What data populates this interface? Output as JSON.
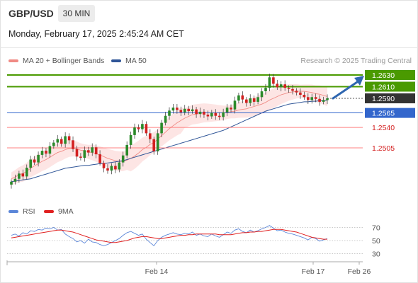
{
  "header": {
    "symbol": "GBP/USD",
    "timeframe": "30 MIN",
    "datetime": "Monday, February 17, 2025 2:45:24 AM CET",
    "credit": "Research © 2025 Trading Central"
  },
  "legend": {
    "bollinger": "MA 20 + Bollinger Bands",
    "ma50": "MA 50",
    "rsi": "RSI",
    "rsi_ma": "9MA"
  },
  "colors": {
    "bollinger": "#f08a84",
    "band_fill": "#fde1df",
    "ma50": "#2f5597",
    "rsi": "#5b86d8",
    "rsi_ma": "#e02020",
    "up": "#2a8a2a",
    "down": "#d32020",
    "target": "#4a9a00",
    "pivot": "#3366cc",
    "support": "#ff8080",
    "current_bg": "#333333",
    "arrow": "#2e66b0"
  },
  "chart_data": {
    "type": "line",
    "instrument": "GBP/USD",
    "timeframe": "30 MIN",
    "x_tick_labels": [
      "Feb 14",
      "Feb 17",
      "Feb 26"
    ],
    "rsi_tick_labels": [
      "70",
      "50",
      "30"
    ],
    "price_levels": [
      {
        "value": 1.263,
        "label": "1.2630",
        "kind": "target"
      },
      {
        "value": 1.261,
        "label": "1.2610",
        "kind": "target"
      },
      {
        "value": 1.259,
        "label": "1.2590",
        "kind": "current"
      },
      {
        "value": 1.2565,
        "label": "1.2565",
        "kind": "pivot"
      },
      {
        "value": 1.254,
        "label": "1.2540",
        "kind": "support"
      },
      {
        "value": 1.2505,
        "label": "1.2505",
        "kind": "support"
      }
    ],
    "close": [
      1.2447,
      1.2452,
      1.2461,
      1.2456,
      1.2471,
      1.2485,
      1.248,
      1.2493,
      1.25,
      1.2495,
      1.2508,
      1.2514,
      1.252,
      1.2512,
      1.2525,
      1.2518,
      1.2503,
      1.249,
      1.2488,
      1.2501,
      1.2497,
      1.2506,
      1.2494,
      1.2479,
      1.247,
      1.2466,
      1.2474,
      1.2468,
      1.248,
      1.2492,
      1.251,
      1.2527,
      1.254,
      1.2537,
      1.2546,
      1.253,
      1.252,
      1.2499,
      1.253,
      1.2548,
      1.256,
      1.2569,
      1.2574,
      1.257,
      1.2566,
      1.2572,
      1.2568,
      1.2571,
      1.2563,
      1.2567,
      1.2562,
      1.2559,
      1.2565,
      1.256,
      1.2558,
      1.2566,
      1.2574,
      1.2571,
      1.2586,
      1.2595,
      1.2588,
      1.2582,
      1.259,
      1.2584,
      1.2592,
      1.2602,
      1.2608,
      1.2626,
      1.2615,
      1.2609,
      1.2614,
      1.2608,
      1.2606,
      1.2603,
      1.26,
      1.2596,
      1.2592,
      1.2587,
      1.2592,
      1.2589,
      1.2584,
      1.2587,
      1.259
    ],
    "ma20": [
      1.2452,
      1.2455,
      1.2459,
      1.2461,
      1.2465,
      1.247,
      1.2474,
      1.2478,
      1.2482,
      1.2485,
      1.2489,
      1.2493,
      1.2497,
      1.2499,
      1.2502,
      1.2504,
      1.2504,
      1.2503,
      1.2501,
      1.25,
      1.2498,
      1.2497,
      1.2495,
      1.2493,
      1.249,
      1.2487,
      1.2485,
      1.2483,
      1.2482,
      1.2482,
      1.2484,
      1.2487,
      1.2491,
      1.2496,
      1.2502,
      1.2506,
      1.2511,
      1.2514,
      1.252,
      1.2526,
      1.2532,
      1.2538,
      1.2543,
      1.2548,
      1.2552,
      1.2556,
      1.2559,
      1.2562,
      1.2563,
      1.2564,
      1.2565,
      1.2565,
      1.2565,
      1.2565,
      1.2565,
      1.2565,
      1.2566,
      1.2567,
      1.2568,
      1.257,
      1.2571,
      1.2572,
      1.2574,
      1.2576,
      1.2578,
      1.258,
      1.2583,
      1.2587,
      1.259,
      1.2593,
      1.2596,
      1.2598,
      1.26,
      1.2601,
      1.2602,
      1.2602,
      1.2602,
      1.2601,
      1.26,
      1.2598,
      1.2597,
      1.2595,
      1.2593
    ],
    "ma50": [
      1.2447,
      1.2448,
      1.2449,
      1.245,
      1.2451,
      1.2452,
      1.2454,
      1.2456,
      1.2458,
      1.246,
      1.2462,
      1.2464,
      1.2466,
      1.2468,
      1.247,
      1.2471,
      1.2472,
      1.2473,
      1.2474,
      1.2475,
      1.2475,
      1.2476,
      1.2477,
      1.2478,
      1.2478,
      1.2479,
      1.248,
      1.2481,
      1.2482,
      1.2483,
      1.2485,
      1.2487,
      1.2489,
      1.2491,
      1.2493,
      1.2495,
      1.2497,
      1.2499,
      1.2501,
      1.2503,
      1.2505,
      1.2507,
      1.2509,
      1.2511,
      1.2513,
      1.2515,
      1.2517,
      1.2519,
      1.2521,
      1.2523,
      1.2525,
      1.2527,
      1.2529,
      1.2531,
      1.2533,
      1.2535,
      1.2538,
      1.2541,
      1.2544,
      1.2547,
      1.255,
      1.2553,
      1.2556,
      1.2559,
      1.2562,
      1.2565,
      1.2568,
      1.257,
      1.2572,
      1.2574,
      1.2576,
      1.2578,
      1.258,
      1.2581,
      1.2582,
      1.2583,
      1.2584,
      1.2584,
      1.2585,
      1.2585,
      1.2586,
      1.2586,
      1.2587
    ],
    "rsi": [
      58,
      60,
      57,
      62,
      60,
      65,
      64,
      67,
      66,
      69,
      68,
      70,
      66,
      67,
      60,
      56,
      53,
      48,
      50,
      46,
      52,
      48,
      47,
      44,
      42,
      44,
      47,
      50,
      53,
      58,
      62,
      64,
      61,
      58,
      60,
      52,
      47,
      42,
      50,
      55,
      58,
      60,
      62,
      60,
      59,
      61,
      60,
      63,
      58,
      60,
      57,
      56,
      60,
      57,
      55,
      59,
      63,
      61,
      66,
      68,
      64,
      62,
      66,
      63,
      65,
      68,
      70,
      73,
      69,
      65,
      66,
      63,
      61,
      60,
      58,
      56,
      54,
      51,
      55,
      53,
      49,
      51,
      53
    ],
    "rsi_ma": [
      54,
      55,
      56,
      57,
      58,
      59,
      60,
      61,
      62,
      63,
      64,
      65,
      66,
      66,
      65,
      64,
      63,
      61,
      59,
      57,
      55,
      53,
      51,
      50,
      49,
      48,
      47,
      47,
      48,
      49,
      50,
      52,
      54,
      55,
      56,
      56,
      55,
      54,
      53,
      53,
      54,
      55,
      56,
      57,
      58,
      58,
      59,
      59,
      60,
      60,
      60,
      60,
      60,
      60,
      59,
      59,
      59,
      59,
      60,
      61,
      62,
      62,
      63,
      63,
      64,
      64,
      65,
      66,
      67,
      67,
      67,
      66,
      65,
      64,
      63,
      61,
      59,
      57,
      55,
      54,
      53,
      52,
      52
    ]
  }
}
